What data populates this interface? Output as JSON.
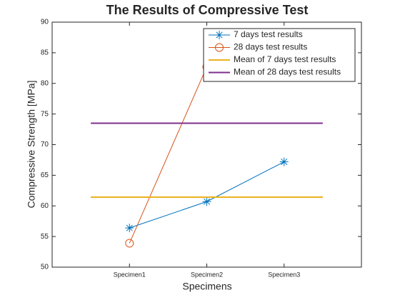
{
  "chart_data": {
    "type": "line",
    "title": "The Results of Compressive Test",
    "xlabel": "Specimens",
    "ylabel": "Compressive Strength [MPa]",
    "xlim": [
      0,
      4
    ],
    "xticks": [
      {
        "value": 1,
        "label": "Specimen1"
      },
      {
        "value": 2,
        "label": "Specimen2"
      },
      {
        "value": 3,
        "label": "Specimen3"
      }
    ],
    "ylim": [
      50,
      90
    ],
    "yticks": [
      50,
      55,
      60,
      65,
      70,
      75,
      80,
      85,
      90
    ],
    "legend": "upper right",
    "series": [
      {
        "name": "7 days test results",
        "color": "#0072bd",
        "marker": "asterisk",
        "x": [
          1,
          2,
          3
        ],
        "values": [
          56.4,
          60.7,
          67.2
        ]
      },
      {
        "name": "28 days test results",
        "color": "#d95319",
        "marker": "circle",
        "x": [
          1,
          2,
          3
        ],
        "values": [
          53.9,
          82.7,
          83.9
        ]
      },
      {
        "name": "Mean of 7 days test results",
        "color": "#edb120",
        "x": [
          0.5,
          3.5
        ],
        "values": [
          61.43,
          61.43
        ]
      },
      {
        "name": "Mean of 28 days test results",
        "color": "#7e2f8e",
        "x": [
          0.5,
          3.5
        ],
        "values": [
          73.5,
          73.5
        ]
      }
    ]
  }
}
